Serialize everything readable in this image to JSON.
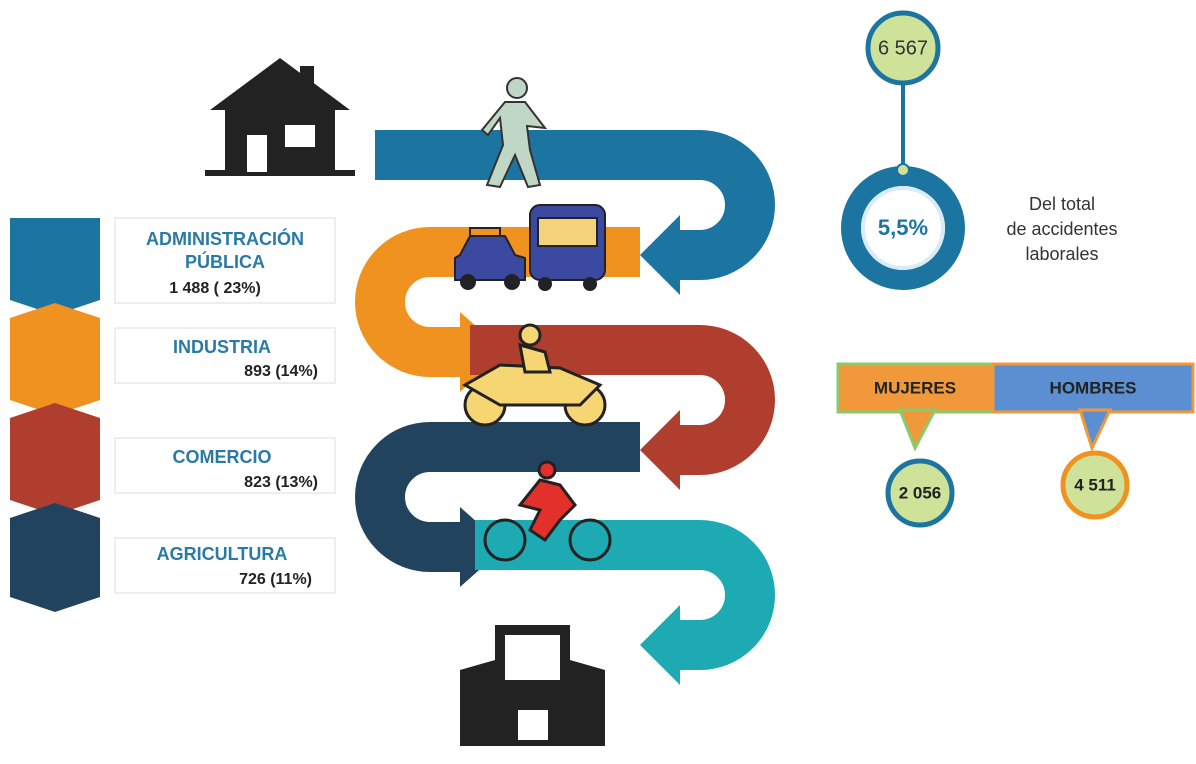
{
  "sectors": [
    {
      "label_lines": [
        "ADMINISTRACIÓN",
        "PÚBLICA"
      ],
      "value": "1 488 ( 23%)"
    },
    {
      "label_lines": [
        "INDUSTRIA"
      ],
      "value": "893 (14%)"
    },
    {
      "label_lines": [
        "COMERCIO"
      ],
      "value": "823 (13%)"
    },
    {
      "label_lines": [
        "AGRICULTURA"
      ],
      "value": "726 (11%)"
    }
  ],
  "total": {
    "count": "6 567",
    "percent": "5,5%",
    "caption_lines": [
      "Del total",
      "de accidentes",
      "laborales"
    ]
  },
  "gender": [
    {
      "label": "MUJERES",
      "value": "2 056"
    },
    {
      "label": "HOMBRES",
      "value": "4 511"
    }
  ]
}
